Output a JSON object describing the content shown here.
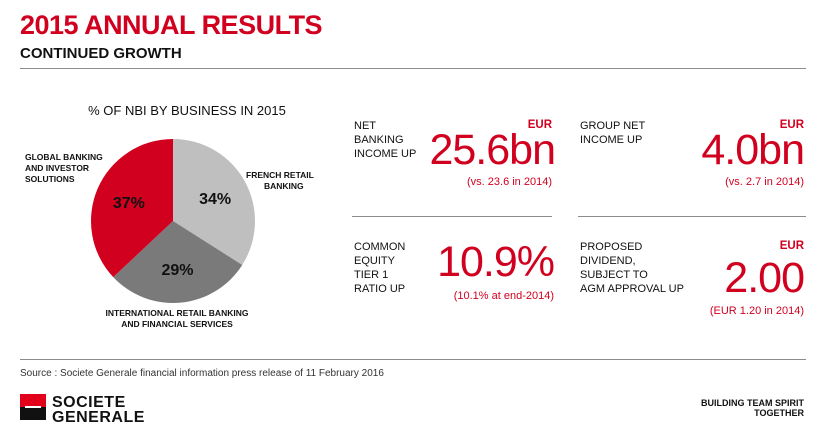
{
  "header": {
    "title": "2015 ANNUAL RESULTS",
    "subtitle": "CONTINUED GROWTH"
  },
  "colors": {
    "brand_red": "#d1001f",
    "french_retail": "#bfbfbf",
    "international_retail": "#7a7a7a",
    "global_banking": "#d1001f"
  },
  "chart_data": {
    "type": "pie",
    "title": "% OF NBI BY BUSINESS IN 2015",
    "categories": [
      "FRENCH RETAIL BANKING",
      "INTERNATIONAL RETAIL BANKING AND FINANCIAL SERVICES",
      "GLOBAL BANKING AND INVESTOR SOLUTIONS"
    ],
    "values": [
      34,
      29,
      37
    ],
    "value_labels": [
      "34%",
      "29%",
      "37%"
    ],
    "colors": [
      "#bfbfbf",
      "#7a7a7a",
      "#d1001f"
    ],
    "labels": {
      "french": [
        "FRENCH RETAIL",
        "BANKING"
      ],
      "international": [
        "INTERNATIONAL RETAIL BANKING",
        "AND FINANCIAL SERVICES"
      ],
      "global": [
        "GLOBAL BANKING",
        "AND INVESTOR",
        "SOLUTIONS"
      ]
    }
  },
  "kpis": {
    "net_banking_income": {
      "label": [
        "NET",
        "BANKING",
        "INCOME UP"
      ],
      "currency": "EUR",
      "value": "25.6bn",
      "note": "(vs. 23.6 in 2014)"
    },
    "group_net_income": {
      "label": [
        "GROUP NET",
        "INCOME UP"
      ],
      "currency": "EUR",
      "value": "4.0bn",
      "note": "(vs. 2.7 in 2014)"
    },
    "cet1": {
      "label": [
        "COMMON",
        "EQUITY",
        "TIER 1",
        "RATIO UP"
      ],
      "value": "10.9%",
      "note": "(10.1% at end-2014)"
    },
    "dividend": {
      "label": [
        "PROPOSED",
        "DIVIDEND,",
        "SUBJECT TO",
        "AGM APPROVAL UP"
      ],
      "currency": "EUR",
      "value": "2.00",
      "note": "(EUR 1.20 in 2014)"
    }
  },
  "footer": {
    "source": "Source : Societe Generale financial information press release of 11 February 2016",
    "logo_line1": "SOCIETE",
    "logo_line2": "GENERALE",
    "tagline_line1": "BUILDING TEAM SPIRIT",
    "tagline_line2": "TOGETHER"
  }
}
